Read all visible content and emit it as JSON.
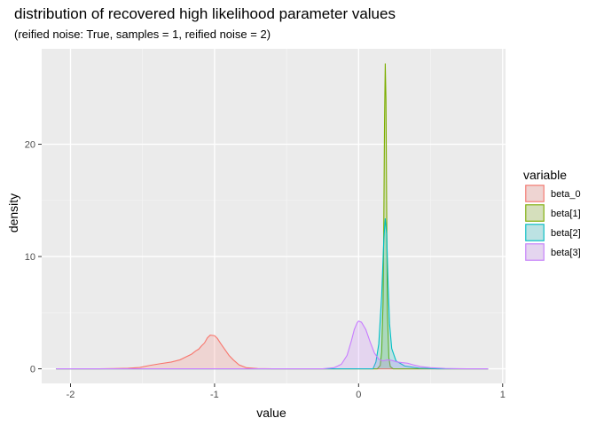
{
  "chart_data": {
    "type": "area",
    "title": "distribution of recovered high likelihood parameter values",
    "subtitle": "(reified noise: True, samples = 1, reified noise = 2)",
    "xlabel": "value",
    "ylabel": "density",
    "xlim": [
      -2.2,
      1.02
    ],
    "ylim": [
      -1.3,
      28.5
    ],
    "x_ticks": [
      -2,
      -1,
      0,
      1
    ],
    "x_tick_labels": [
      "-2",
      "-1",
      "0",
      "1"
    ],
    "y_ticks": [
      0,
      10,
      20
    ],
    "y_tick_labels": [
      "0",
      "10",
      "20"
    ],
    "grid": true,
    "legend": {
      "title": "variable",
      "position": "right"
    },
    "series": [
      {
        "name": "beta_0",
        "line_color": "#F8766D",
        "fill_color": "#F8766D",
        "points": [
          [
            -2.1,
            0
          ],
          [
            -1.8,
            0
          ],
          [
            -1.7,
            0.02
          ],
          [
            -1.6,
            0.05
          ],
          [
            -1.52,
            0.12
          ],
          [
            -1.45,
            0.3
          ],
          [
            -1.38,
            0.45
          ],
          [
            -1.3,
            0.6
          ],
          [
            -1.24,
            0.8
          ],
          [
            -1.2,
            1.05
          ],
          [
            -1.16,
            1.3
          ],
          [
            -1.13,
            1.6
          ],
          [
            -1.11,
            1.75
          ],
          [
            -1.09,
            2.05
          ],
          [
            -1.07,
            2.3
          ],
          [
            -1.05,
            2.75
          ],
          [
            -1.03,
            3.0
          ],
          [
            -1.0,
            2.95
          ],
          [
            -0.98,
            2.7
          ],
          [
            -0.96,
            2.3
          ],
          [
            -0.93,
            1.75
          ],
          [
            -0.9,
            1.2
          ],
          [
            -0.87,
            0.8
          ],
          [
            -0.83,
            0.35
          ],
          [
            -0.78,
            0.1
          ],
          [
            -0.7,
            0.02
          ],
          [
            -0.6,
            0
          ],
          [
            0.9,
            0
          ]
        ]
      },
      {
        "name": "beta[1]",
        "line_color": "#7CAE00",
        "fill_color": "#7CAE00",
        "points": [
          [
            -2.1,
            0
          ],
          [
            0.13,
            0
          ],
          [
            0.15,
            0.3
          ],
          [
            0.16,
            1.5
          ],
          [
            0.17,
            6
          ],
          [
            0.175,
            13
          ],
          [
            0.18,
            22
          ],
          [
            0.185,
            27.2
          ],
          [
            0.19,
            24
          ],
          [
            0.195,
            14
          ],
          [
            0.2,
            5
          ],
          [
            0.21,
            1
          ],
          [
            0.22,
            0.2
          ],
          [
            0.24,
            0
          ],
          [
            0.9,
            0
          ]
        ]
      },
      {
        "name": "beta[2]",
        "line_color": "#00BFC4",
        "fill_color": "#00BFC4",
        "points": [
          [
            -2.1,
            0
          ],
          [
            0.1,
            0
          ],
          [
            0.12,
            0.6
          ],
          [
            0.14,
            2.2
          ],
          [
            0.16,
            6.5
          ],
          [
            0.175,
            11.5
          ],
          [
            0.185,
            13.4
          ],
          [
            0.195,
            12.0
          ],
          [
            0.205,
            7.5
          ],
          [
            0.215,
            4.0
          ],
          [
            0.23,
            1.8
          ],
          [
            0.26,
            0.7
          ],
          [
            0.32,
            0.25
          ],
          [
            0.42,
            0.06
          ],
          [
            0.55,
            0
          ],
          [
            0.9,
            0
          ]
        ]
      },
      {
        "name": "beta[3]",
        "line_color": "#C77CFF",
        "fill_color": "#C77CFF",
        "points": [
          [
            -2.1,
            0
          ],
          [
            -0.25,
            0
          ],
          [
            -0.17,
            0.1
          ],
          [
            -0.12,
            0.4
          ],
          [
            -0.08,
            1.2
          ],
          [
            -0.05,
            2.5
          ],
          [
            -0.03,
            3.5
          ],
          [
            -0.01,
            4.1
          ],
          [
            0.0,
            4.25
          ],
          [
            0.02,
            4.15
          ],
          [
            0.05,
            3.5
          ],
          [
            0.08,
            2.4
          ],
          [
            0.11,
            1.4
          ],
          [
            0.14,
            0.85
          ],
          [
            0.17,
            0.7
          ],
          [
            0.2,
            0.8
          ],
          [
            0.23,
            0.75
          ],
          [
            0.27,
            0.6
          ],
          [
            0.3,
            0.55
          ],
          [
            0.34,
            0.5
          ],
          [
            0.38,
            0.35
          ],
          [
            0.43,
            0.2
          ],
          [
            0.5,
            0.1
          ],
          [
            0.6,
            0.03
          ],
          [
            0.75,
            0
          ],
          [
            0.9,
            0
          ]
        ]
      }
    ]
  }
}
